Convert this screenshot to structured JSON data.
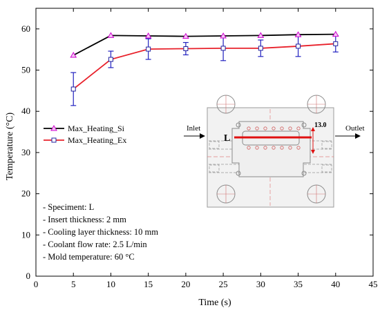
{
  "chart_data": {
    "type": "line",
    "xlabel": "Time (s)",
    "ylabel": "Temperature (°C)",
    "xlim": [
      0,
      45
    ],
    "ylim": [
      0,
      65
    ],
    "x_ticks": [
      "0",
      "5",
      "10",
      "15",
      "20",
      "25",
      "30",
      "35",
      "40",
      "45"
    ],
    "y_ticks": [
      "0",
      "10",
      "20",
      "30",
      "40",
      "50",
      "60"
    ],
    "grid": false,
    "legend_position": "left-middle",
    "x": [
      5,
      10,
      15,
      20,
      25,
      30,
      35,
      40
    ],
    "series": [
      {
        "name": "Max_Heating_Si",
        "color": "#000000",
        "marker": "triangle",
        "marker_color": "#d000d0",
        "values": [
          53.6,
          58.4,
          58.3,
          58.2,
          58.3,
          58.4,
          58.6,
          58.7
        ]
      },
      {
        "name": "Max_Heating_Ex",
        "color": "#e8202a",
        "marker": "square",
        "marker_color": "#1f1f9f",
        "values": [
          45.4,
          52.6,
          55.1,
          55.2,
          55.3,
          55.3,
          55.8,
          56.4
        ],
        "error": [
          4.0,
          2.0,
          2.5,
          1.5,
          3.0,
          2.0,
          2.5,
          2.0
        ],
        "error_color": "#2020c0"
      }
    ],
    "annotations": [
      "- Speciment: L",
      "- Insert thickness: 2 mm",
      "- Cooling layer thickness: 10  mm",
      "- Coolant flow rate: 2.5 L/min",
      "- Mold temperature: 60 °C"
    ],
    "inset": {
      "inlet_label": "Inlet",
      "outlet_label": "Outlet",
      "path_label": "L",
      "dimension_label": "13.0"
    }
  }
}
